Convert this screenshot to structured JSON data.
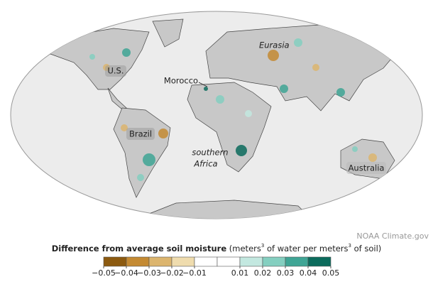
{
  "map": {
    "labels": {
      "eurasia": "Eurasia",
      "us": "U.S.",
      "morocco": "Morocco",
      "brazil": "Brazil",
      "southern_africa": [
        "southern",
        "Africa"
      ],
      "australia": "Australia"
    },
    "credit": "NOAA Climate.gov"
  },
  "legend": {
    "title": "Difference from average soil moisture",
    "units": [
      " (meters",
      "3",
      " of water per meters",
      "3",
      " of soil)"
    ],
    "colors": [
      "#8c5a10",
      "#c48a33",
      "#dcb56e",
      "#efdcae",
      "#ffffff",
      "#ffffff",
      "#c3e8e0",
      "#84cfc0",
      "#3fa595",
      "#0b6b5c"
    ],
    "ticks": [
      {
        "value": -0.05,
        "label": "−0.05"
      },
      {
        "value": -0.04,
        "label": "−0.04"
      },
      {
        "value": -0.03,
        "label": "−0.03"
      },
      {
        "value": -0.02,
        "label": "−0.02"
      },
      {
        "value": -0.01,
        "label": "−0.01"
      },
      0.01,
      0.02,
      0.03,
      0.04,
      0.05
    ]
  }
}
